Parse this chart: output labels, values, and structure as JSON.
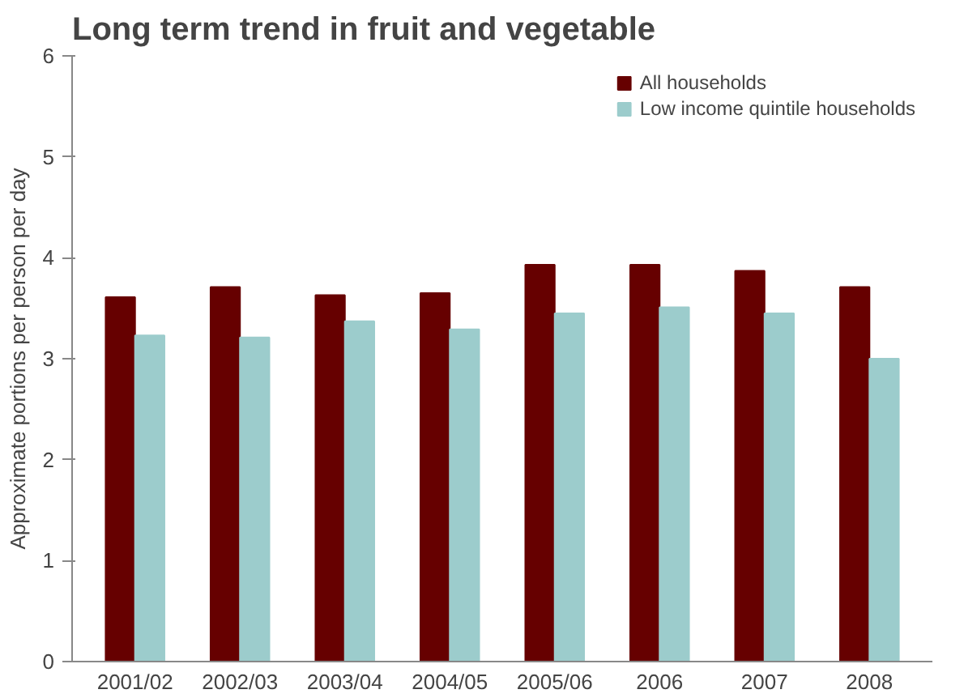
{
  "chart_data": {
    "type": "bar",
    "title": "Long term trend in fruit and vegetable",
    "ylabel": "Approximate portions per person per day",
    "categories": [
      "2001/02",
      "2002/03",
      "2003/04",
      "2004/05",
      "2005/06",
      "2006",
      "2007",
      "2008"
    ],
    "series": [
      {
        "name": "All households",
        "color": "#660000",
        "values": [
          3.61,
          3.71,
          3.63,
          3.65,
          3.93,
          3.93,
          3.87,
          3.71
        ]
      },
      {
        "name": "Low income quintile households",
        "color": "#9ccccc",
        "values": [
          3.23,
          3.21,
          3.37,
          3.29,
          3.45,
          3.51,
          3.45,
          3.0
        ]
      }
    ],
    "ylim": [
      0,
      6
    ],
    "yticks": [
      0,
      1,
      2,
      3,
      4,
      5,
      6
    ],
    "grid": false,
    "legend": "top right"
  }
}
